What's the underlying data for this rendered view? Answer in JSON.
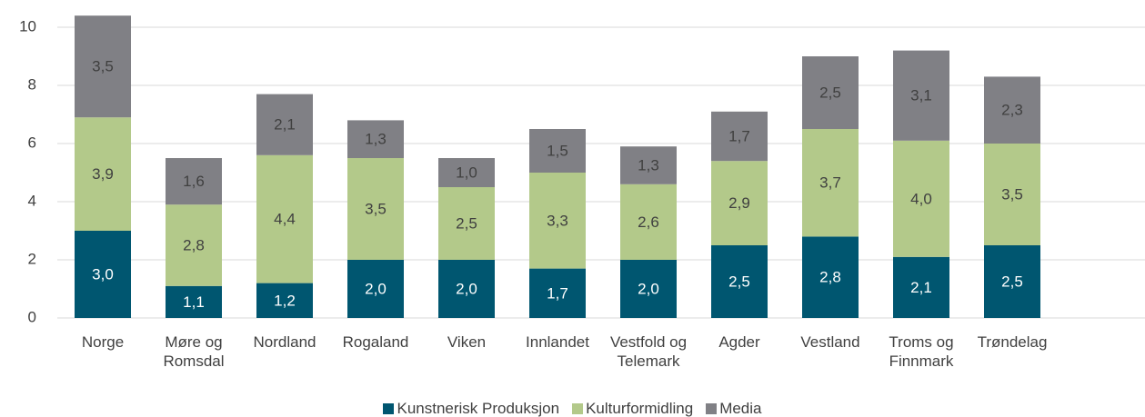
{
  "chart_data": {
    "type": "stacked_bar",
    "categories": [
      "Norge",
      "Møre og Romsdal",
      "Nordland",
      "Rogaland",
      "Viken",
      "Innlandet",
      "Vestfold og Telemark",
      "Agder",
      "Vestland",
      "Troms og Finnmark",
      "Trøndelag"
    ],
    "series": [
      {
        "name": "Kunstnerisk Produksjon",
        "color": "#005670",
        "values": [
          3.0,
          1.1,
          1.2,
          2.0,
          2.0,
          1.7,
          2.0,
          2.5,
          2.8,
          2.1,
          2.5
        ],
        "value_labels": [
          "3,0",
          "1,1",
          "1,2",
          "2,0",
          "2,0",
          "1,7",
          "2,0",
          "2,5",
          "2,8",
          "2,1",
          "2,5"
        ]
      },
      {
        "name": "Kulturformidling",
        "color": "#b3c98a",
        "values": [
          3.9,
          2.8,
          4.4,
          3.5,
          2.5,
          3.3,
          2.6,
          2.9,
          3.7,
          4.0,
          3.5
        ],
        "value_labels": [
          "3,9",
          "2,8",
          "4,4",
          "3,5",
          "2,5",
          "3,3",
          "2,6",
          "2,9",
          "3,7",
          "4,0",
          "3,5"
        ]
      },
      {
        "name": "Media",
        "color": "#808085",
        "values": [
          3.5,
          1.6,
          2.1,
          1.3,
          1.0,
          1.5,
          1.3,
          1.7,
          2.5,
          3.1,
          2.3
        ],
        "value_labels": [
          "3,5",
          "1,6",
          "2,1",
          "1,3",
          "1,0",
          "1,5",
          "1,3",
          "1,7",
          "2,5",
          "3,1",
          "2,3"
        ]
      }
    ],
    "ylim": [
      0,
      10.4
    ],
    "yticks": [
      0,
      2,
      4,
      6,
      8,
      10
    ],
    "grid": true,
    "legend": "bottom"
  }
}
